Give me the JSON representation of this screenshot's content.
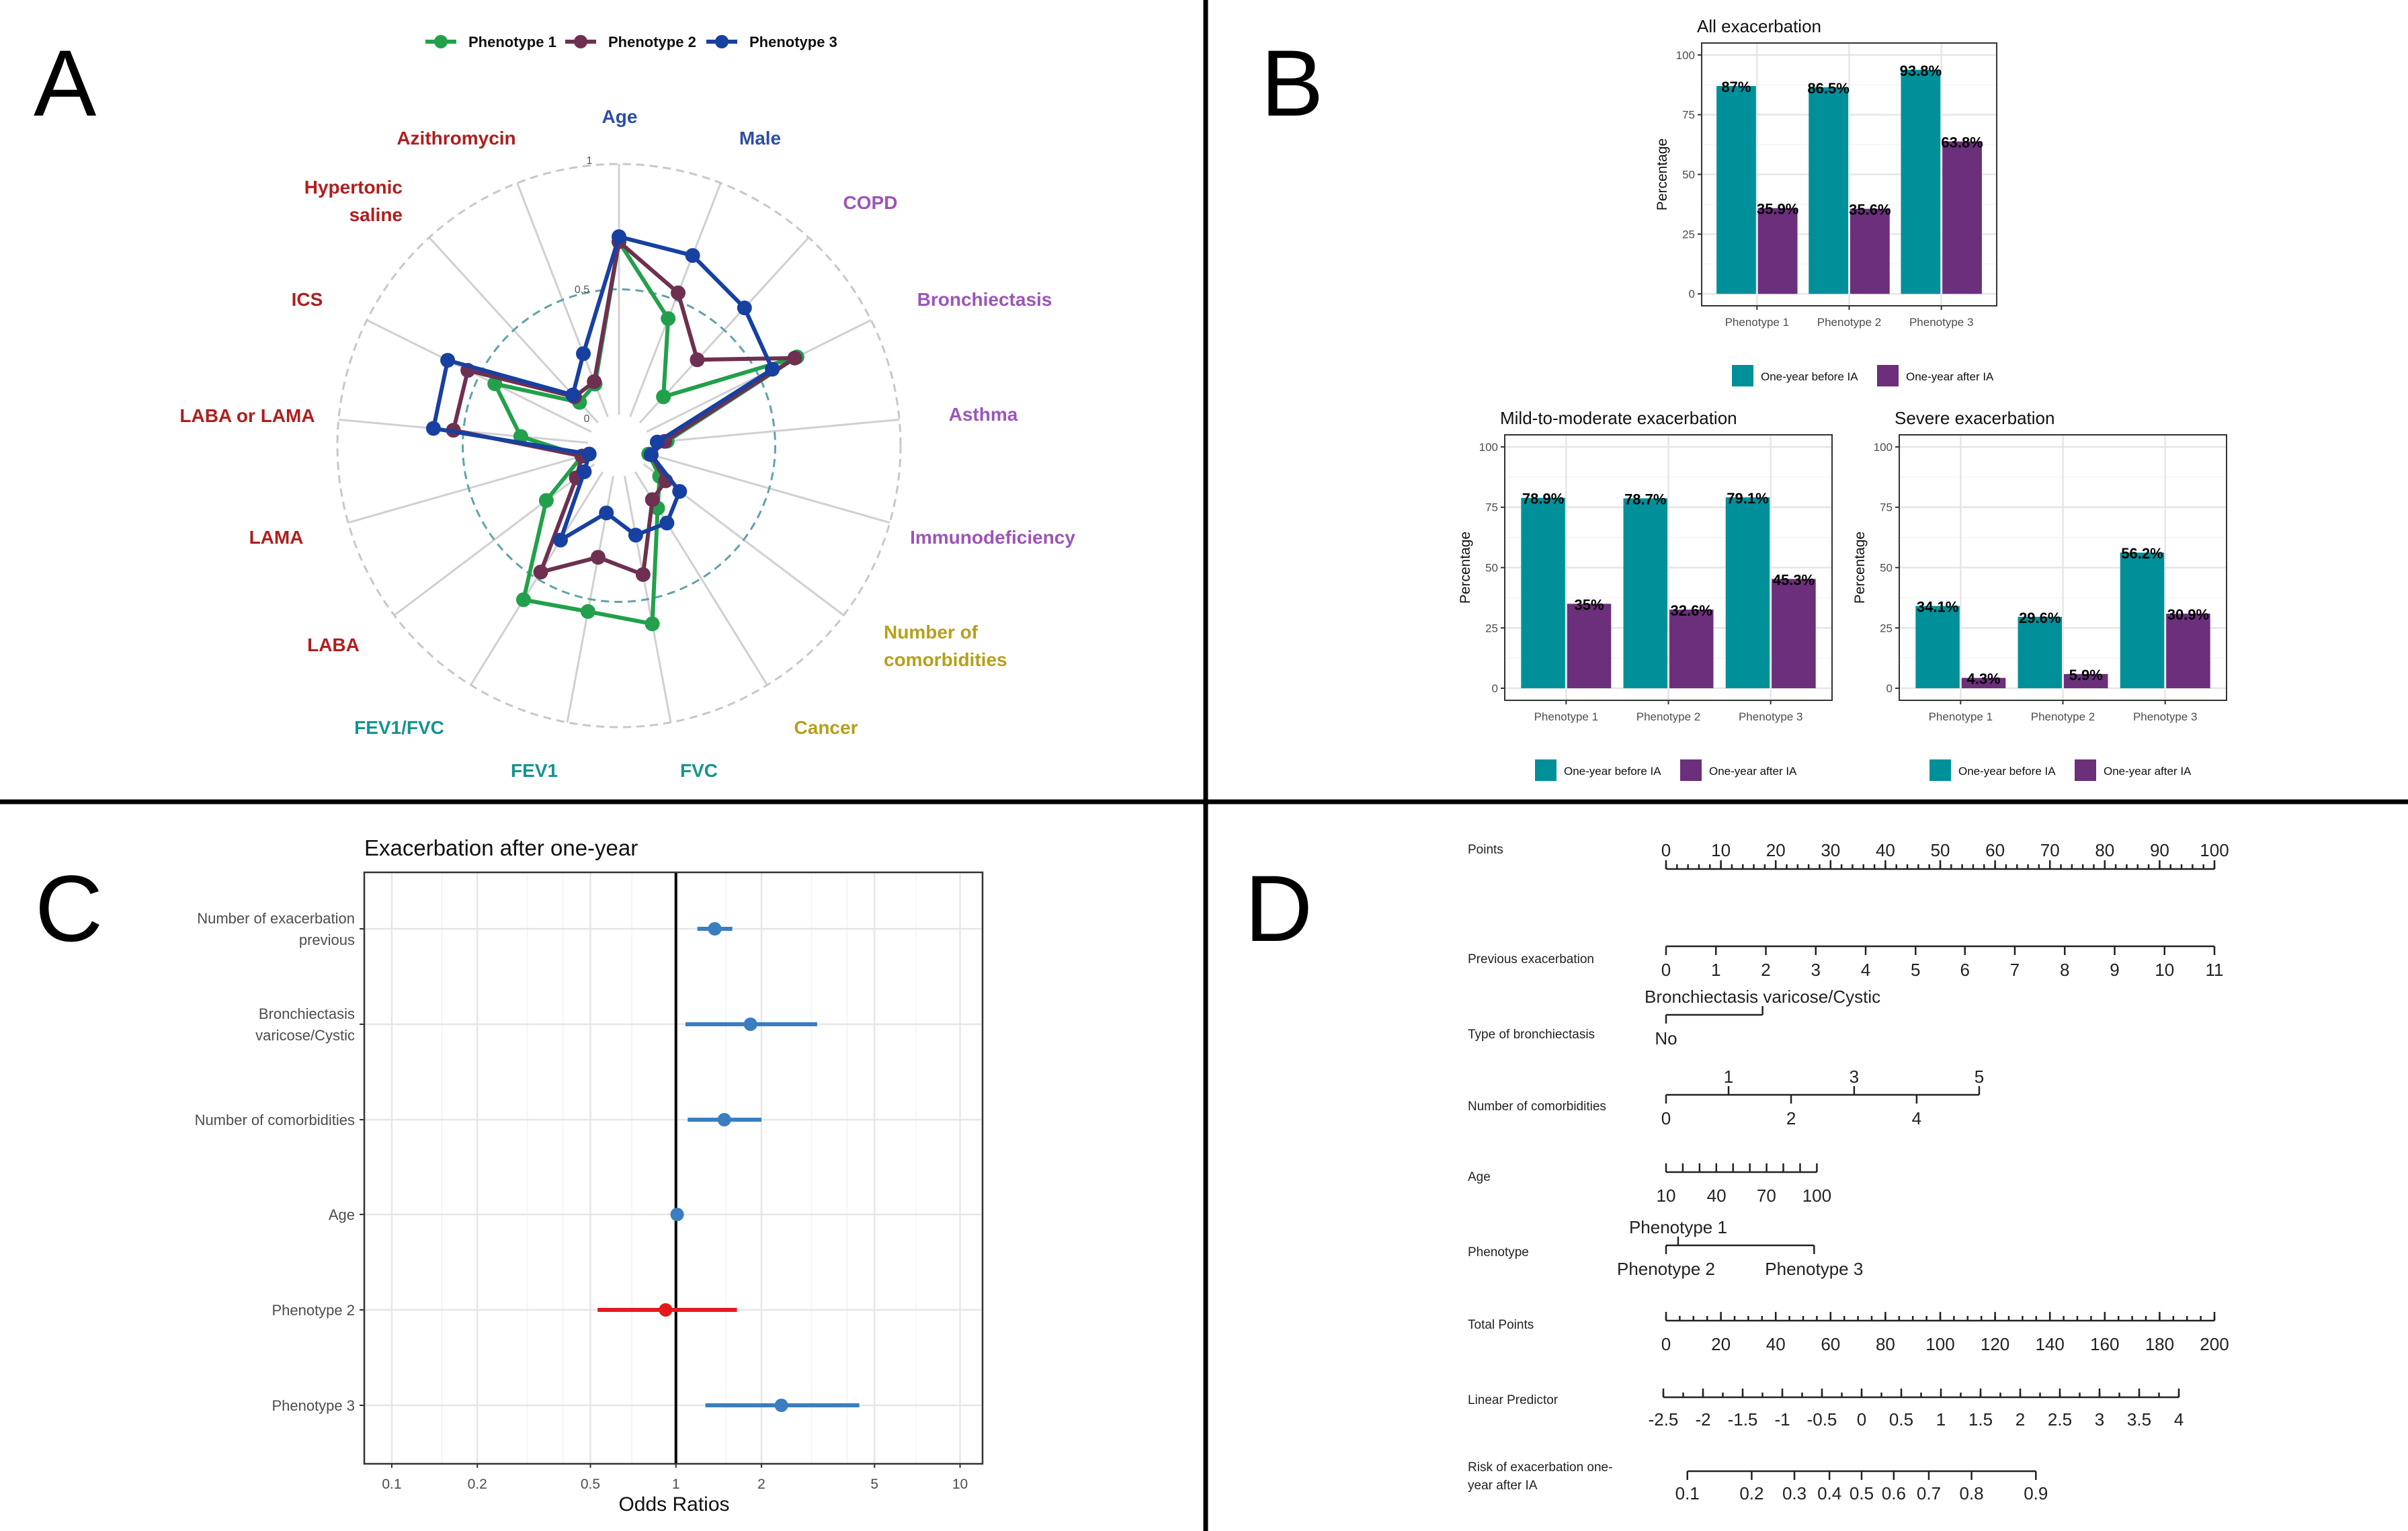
{
  "panel_labels": {
    "a": "A",
    "b": "B",
    "c": "C",
    "d": "D"
  },
  "chart_data": [
    {
      "type": "radar",
      "rlim": [
        0,
        1
      ],
      "r_ticks": [
        "0",
        "0.5",
        "1"
      ],
      "legend_position": "top",
      "axes": [
        {
          "label": [
            "Age"
          ],
          "color": "#2b4ea6"
        },
        {
          "label": [
            "Male"
          ],
          "color": "#2b4ea6"
        },
        {
          "label": [
            "COPD"
          ],
          "color": "#9c55b8"
        },
        {
          "label": [
            "Bronchiectasis"
          ],
          "color": "#9c55b8"
        },
        {
          "label": [
            "Asthma"
          ],
          "color": "#9c55b8"
        },
        {
          "label": [
            "Immunodeficiency"
          ],
          "color": "#9c55b8"
        },
        {
          "label": [
            "Number of",
            "comorbidities"
          ],
          "color": "#b5a01b"
        },
        {
          "label": [
            "Cancer"
          ],
          "color": "#b5a01b"
        },
        {
          "label": [
            "FVC"
          ],
          "color": "#17938f"
        },
        {
          "label": [
            "FEV1"
          ],
          "color": "#17938f"
        },
        {
          "label": [
            "FEV1/FVC"
          ],
          "color": "#17938f"
        },
        {
          "label": [
            "LABA"
          ],
          "color": "#b01e1e"
        },
        {
          "label": [
            "LAMA"
          ],
          "color": "#b01e1e"
        },
        {
          "label": [
            "LABA or LAMA"
          ],
          "color": "#b01e1e"
        },
        {
          "label": [
            "ICS"
          ],
          "color": "#b01e1e"
        },
        {
          "label": [
            "Hypertonic",
            "saline"
          ],
          "color": "#b01e1e"
        },
        {
          "label": [
            "Azithromycin"
          ],
          "color": "#b01e1e"
        }
      ],
      "series": [
        {
          "name": "Phenotype 1",
          "color": "#22a04b",
          "values": [
            0.69,
            0.42,
            0.14,
            0.67,
            0.07,
            0.0,
            0.08,
            0.17,
            0.6,
            0.55,
            0.6,
            0.24,
            0.03,
            0.27,
            0.43,
            0.11,
            0.14
          ]
        },
        {
          "name": "Phenotype 2",
          "color": "#6e3050",
          "values": [
            0.69,
            0.53,
            0.34,
            0.66,
            0.06,
            0.01,
            0.11,
            0.13,
            0.4,
            0.33,
            0.47,
            0.09,
            0.03,
            0.54,
            0.55,
            0.14,
            0.15
          ]
        },
        {
          "name": "Phenotype 3",
          "color": "#1740a0",
          "values": [
            0.71,
            0.69,
            0.62,
            0.56,
            0.03,
            0.01,
            0.18,
            0.24,
            0.24,
            0.15,
            0.32,
            0.05,
            0.0,
            0.62,
            0.64,
            0.15,
            0.27
          ]
        }
      ]
    },
    {
      "type": "bar",
      "title": "All exacerbation",
      "ylabel": "Percentage",
      "ylim": [
        0,
        100
      ],
      "yticks": [
        "0",
        "25",
        "50",
        "75",
        "100"
      ],
      "categories": [
        "Phenotype 1",
        "Phenotype 2",
        "Phenotype 3"
      ],
      "legend_position": "bottom",
      "series": [
        {
          "name": "One-year before IA",
          "color": "#00909a",
          "values": [
            87,
            86.5,
            93.8
          ],
          "labels": [
            "87%",
            "86.5%",
            "93.8%"
          ]
        },
        {
          "name": "One-year after IA",
          "color": "#6b2f7b",
          "values": [
            35.9,
            35.6,
            63.8
          ],
          "labels": [
            "35.9%",
            "35.6%",
            "63.8%"
          ]
        }
      ]
    },
    {
      "type": "bar",
      "title": "Mild-to-moderate exacerbation",
      "ylabel": "Percentage",
      "ylim": [
        0,
        100
      ],
      "yticks": [
        "0",
        "25",
        "50",
        "75",
        "100"
      ],
      "categories": [
        "Phenotype 1",
        "Phenotype 2",
        "Phenotype 3"
      ],
      "legend_position": "bottom",
      "series": [
        {
          "name": "One-year before IA",
          "color": "#00909a",
          "values": [
            78.9,
            78.7,
            79.1
          ],
          "labels": [
            "78.9%",
            "78.7%",
            "79.1%"
          ]
        },
        {
          "name": "One-year after IA",
          "color": "#6b2f7b",
          "values": [
            35,
            32.6,
            45.3
          ],
          "labels": [
            "35%",
            "32.6%",
            "45.3%"
          ]
        }
      ]
    },
    {
      "type": "bar",
      "title": "Severe exacerbation",
      "ylabel": "Percentage",
      "ylim": [
        0,
        100
      ],
      "yticks": [
        "0",
        "25",
        "50",
        "75",
        "100"
      ],
      "categories": [
        "Phenotype 1",
        "Phenotype 2",
        "Phenotype 3"
      ],
      "legend_position": "bottom",
      "series": [
        {
          "name": "One-year before IA",
          "color": "#00909a",
          "values": [
            34.1,
            29.6,
            56.2
          ],
          "labels": [
            "34.1%",
            "29.6%",
            "56.2%"
          ]
        },
        {
          "name": "One-year after IA",
          "color": "#6b2f7b",
          "values": [
            4.3,
            5.9,
            30.9
          ],
          "labels": [
            "4.3%",
            "5.9%",
            "30.9%"
          ]
        }
      ]
    },
    {
      "type": "forest",
      "title": "Exacerbation after one-year",
      "xlabel": "Odds Ratios",
      "xscale": "log",
      "xlim": [
        0.08,
        12
      ],
      "xticks": [
        "0.1",
        "0.2",
        "0.5",
        "1",
        "2",
        "5",
        "10"
      ],
      "reference_line": 1,
      "rows": [
        {
          "label": [
            "Number of exacerbation",
            "previous"
          ],
          "or": 1.37,
          "ci": [
            1.19,
            1.58
          ],
          "color": "#3a7dc0"
        },
        {
          "label": [
            "Bronchiectasis",
            "varicose/Cystic"
          ],
          "or": 1.83,
          "ci": [
            1.08,
            3.14
          ],
          "color": "#3a7dc0"
        },
        {
          "label": [
            "Number of comorbidities"
          ],
          "or": 1.48,
          "ci": [
            1.1,
            2.0
          ],
          "color": "#3a7dc0"
        },
        {
          "label": [
            "Age"
          ],
          "or": 1.01,
          "ci": [
            0.99,
            1.03
          ],
          "color": "#3a7dc0"
        },
        {
          "label": [
            "Phenotype 2"
          ],
          "or": 0.92,
          "ci": [
            0.53,
            1.64
          ],
          "color": "#e41a1c"
        },
        {
          "label": [
            "Phenotype 3"
          ],
          "or": 2.35,
          "ci": [
            1.27,
            4.42
          ],
          "color": "#3a7dc0"
        }
      ]
    },
    {
      "type": "nomogram",
      "points_axis": {
        "label": [
          "Points"
        ],
        "ticks": [
          "0",
          "10",
          "20",
          "30",
          "40",
          "50",
          "60",
          "70",
          "80",
          "90",
          "100"
        ],
        "values": [
          0,
          10,
          20,
          30,
          40,
          50,
          60,
          70,
          80,
          90,
          100
        ],
        "minor_step": 2
      },
      "variables": [
        {
          "label": [
            "Previous exacerbation"
          ],
          "ticks": [
            {
              "text": "0",
              "points": 0,
              "side": "below"
            },
            {
              "text": "1",
              "points": 9.1,
              "side": "below"
            },
            {
              "text": "2",
              "points": 18.2,
              "side": "below"
            },
            {
              "text": "3",
              "points": 27.3,
              "side": "below"
            },
            {
              "text": "4",
              "points": 36.4,
              "side": "below"
            },
            {
              "text": "5",
              "points": 45.5,
              "side": "below"
            },
            {
              "text": "6",
              "points": 54.5,
              "side": "below"
            },
            {
              "text": "7",
              "points": 63.6,
              "side": "below"
            },
            {
              "text": "8",
              "points": 72.7,
              "side": "below"
            },
            {
              "text": "9",
              "points": 81.8,
              "side": "below"
            },
            {
              "text": "10",
              "points": 90.9,
              "side": "below"
            },
            {
              "text": "11",
              "points": 100,
              "side": "below"
            }
          ]
        },
        {
          "label": [
            "Type of bronchiectasis"
          ],
          "ticks": [
            {
              "text": "No",
              "points": 0,
              "side": "below"
            },
            {
              "text": "Bronchiectasis varicose/Cystic",
              "points": 17.6,
              "side": "above"
            }
          ]
        },
        {
          "label": [
            "Number of comorbidities"
          ],
          "ticks": [
            {
              "text": "0",
              "points": 0,
              "side": "below"
            },
            {
              "text": "1",
              "points": 11.4,
              "side": "above"
            },
            {
              "text": "2",
              "points": 22.8,
              "side": "below"
            },
            {
              "text": "3",
              "points": 34.3,
              "side": "above"
            },
            {
              "text": "4",
              "points": 45.7,
              "side": "below"
            },
            {
              "text": "5",
              "points": 57.1,
              "side": "above"
            }
          ]
        },
        {
          "label": [
            "Age"
          ],
          "minor_ticks": 10,
          "ticks": [
            {
              "text": "10",
              "points": 0,
              "side": "below"
            },
            {
              "text": "40",
              "points": 9.2,
              "side": "below"
            },
            {
              "text": "70",
              "points": 18.3,
              "side": "below"
            },
            {
              "text": "100",
              "points": 27.5,
              "side": "below"
            }
          ]
        },
        {
          "label": [
            "Phenotype"
          ],
          "ticks": [
            {
              "text": "Phenotype 2",
              "points": 0,
              "side": "below"
            },
            {
              "text": "Phenotype 1",
              "points": 2.2,
              "side": "above"
            },
            {
              "text": "Phenotype 3",
              "points": 27,
              "side": "below"
            }
          ]
        }
      ],
      "total_points": {
        "label": [
          "Total Points"
        ],
        "ticks": [
          "0",
          "20",
          "40",
          "60",
          "80",
          "100",
          "120",
          "140",
          "160",
          "180",
          "200"
        ],
        "values": [
          0,
          20,
          40,
          60,
          80,
          100,
          120,
          140,
          160,
          180,
          200
        ],
        "minor_step": 5
      },
      "linear_predictor": {
        "label": [
          "Linear Predictor"
        ],
        "ticks": [
          "-2.5",
          "-2",
          "-1.5",
          "-1",
          "-0.5",
          "0",
          "0.5",
          "1",
          "1.5",
          "2",
          "2.5",
          "3",
          "3.5",
          "4"
        ],
        "values": [
          -2.5,
          -2,
          -1.5,
          -1,
          -0.5,
          0,
          0.5,
          1,
          1.5,
          2,
          2.5,
          3,
          3.5,
          4
        ],
        "minor_step": 0.25
      },
      "risk": {
        "label": [
          "Risk of exacerbation one-",
          "year after IA"
        ],
        "ticks": [
          "0.1",
          "0.2",
          "0.3",
          "0.4",
          "0.5",
          "0.6",
          "0.7",
          "0.8",
          "0.9"
        ],
        "values": [
          0.1,
          0.2,
          0.3,
          0.4,
          0.5,
          0.6,
          0.7,
          0.8,
          0.9
        ]
      }
    }
  ]
}
